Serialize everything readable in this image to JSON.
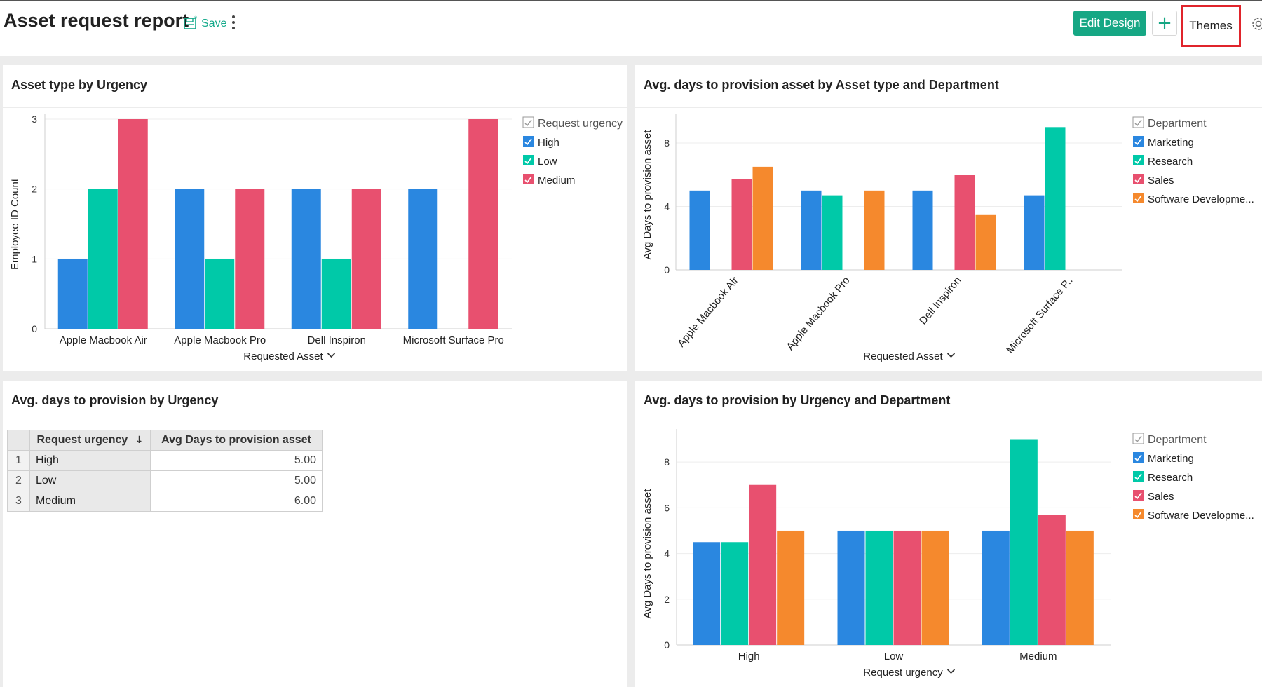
{
  "header": {
    "title": "Asset request report",
    "save_label": "Save",
    "edit_design_label": "Edit Design",
    "plus_label": "+",
    "themes_label": "Themes"
  },
  "colors": {
    "blue": "#2a87e0",
    "teal": "#00c9a8",
    "pink": "#e8506f",
    "orange": "#f5892d",
    "green_button": "#16a784",
    "highlight_border": "#e0242b"
  },
  "panels": {
    "p1": {
      "title": "Asset type by Urgency"
    },
    "p2": {
      "title": "Avg. days to provision asset by Asset type and Department"
    },
    "p3": {
      "title": "Avg. days to provision by Urgency"
    },
    "p4": {
      "title": "Avg. days to provision by Urgency and Department"
    }
  },
  "chart_data": [
    {
      "id": "p1",
      "type": "bar",
      "xlabel": "Requested Asset",
      "ylabel": "Employee ID Count",
      "ylim": [
        0,
        3
      ],
      "yticks": [
        0,
        1,
        2,
        3
      ],
      "categories": [
        "Apple Macbook Air",
        "Apple Macbook Pro",
        "Dell Inspiron",
        "Microsoft Surface Pro"
      ],
      "legend_title": "Request urgency",
      "legend_position": "top-right",
      "series": [
        {
          "name": "High",
          "color": "#2a87e0",
          "values": [
            1,
            2,
            2,
            2
          ]
        },
        {
          "name": "Low",
          "color": "#00c9a8",
          "values": [
            2,
            1,
            1,
            0
          ]
        },
        {
          "name": "Medium",
          "color": "#e8506f",
          "values": [
            3,
            2,
            2,
            3
          ]
        }
      ]
    },
    {
      "id": "p2",
      "type": "bar",
      "xlabel": "Requested Asset",
      "ylabel": "Avg Days to provision asset",
      "ylim": [
        0,
        9.5
      ],
      "yticks": [
        0,
        4,
        8
      ],
      "categories": [
        "Apple Macbook Air",
        "Apple Macbook Pro",
        "Dell Inspiron",
        "Microsoft Surface P.."
      ],
      "legend_title": "Department",
      "legend_position": "top-right",
      "series": [
        {
          "name": "Marketing",
          "color": "#2a87e0",
          "values": [
            5,
            5,
            5,
            4.7
          ]
        },
        {
          "name": "Research",
          "color": "#00c9a8",
          "values": [
            null,
            4.7,
            null,
            9
          ]
        },
        {
          "name": "Sales",
          "color": "#e8506f",
          "values": [
            5.7,
            null,
            6,
            null
          ]
        },
        {
          "name": "Software Developme...",
          "color": "#f5892d",
          "values": [
            6.5,
            5,
            3.5,
            null
          ]
        }
      ]
    },
    {
      "id": "p3",
      "type": "table",
      "columns": [
        "Request urgency",
        "Avg Days to provision asset"
      ],
      "sort_icon": "down-arrow-icon",
      "rows": [
        {
          "num": "1",
          "label": "High",
          "value": "5.00"
        },
        {
          "num": "2",
          "label": "Low",
          "value": "5.00"
        },
        {
          "num": "3",
          "label": "Medium",
          "value": "6.00"
        }
      ]
    },
    {
      "id": "p4",
      "type": "bar",
      "xlabel": "Request urgency",
      "ylabel": "Avg Days to provision asset",
      "ylim": [
        0,
        9.2
      ],
      "yticks": [
        0,
        2,
        4,
        6,
        8
      ],
      "categories": [
        "High",
        "Low",
        "Medium"
      ],
      "legend_title": "Department",
      "legend_position": "top-right",
      "series": [
        {
          "name": "Marketing",
          "color": "#2a87e0",
          "values": [
            4.5,
            5,
            5
          ]
        },
        {
          "name": "Research",
          "color": "#00c9a8",
          "values": [
            4.5,
            5,
            9
          ]
        },
        {
          "name": "Sales",
          "color": "#e8506f",
          "values": [
            7,
            5,
            5.7
          ]
        },
        {
          "name": "Software Developme...",
          "color": "#f5892d",
          "values": [
            5,
            5,
            5
          ]
        }
      ]
    }
  ]
}
